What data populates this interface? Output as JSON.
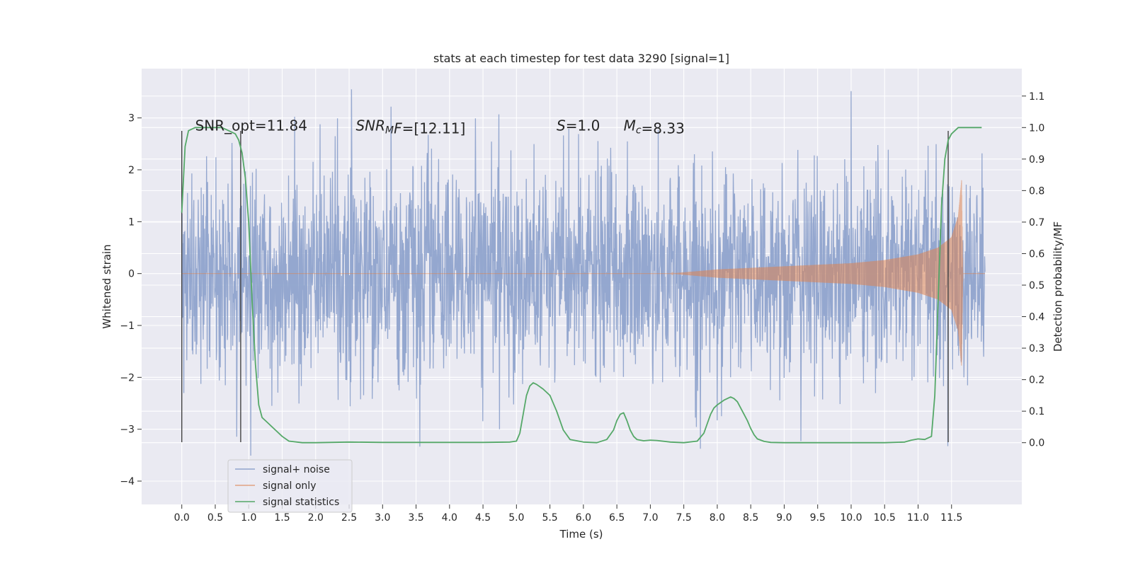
{
  "chart_data": {
    "type": "line",
    "title": "stats at each timestep for test data 3290 [signal=1]",
    "xlabel": "Time (s)",
    "ylabel": "Whitened strain",
    "ylabel_right": "Detection probability/MF",
    "xlim": [
      -0.6,
      12.55
    ],
    "ylim": [
      -4.45,
      3.95
    ],
    "ylim_right": [
      -0.196,
      1.187
    ],
    "x_ticks": [
      0.0,
      0.5,
      1.0,
      1.5,
      2.0,
      2.5,
      3.0,
      3.5,
      4.0,
      4.5,
      5.0,
      5.5,
      6.0,
      6.5,
      7.0,
      7.5,
      8.0,
      8.5,
      9.0,
      9.5,
      10.0,
      10.5,
      11.0,
      11.5
    ],
    "x_tick_labels": [
      "0.0",
      "0.5",
      "1.0",
      "1.5",
      "2.0",
      "2.5",
      "3.0",
      "3.5",
      "4.0",
      "4.5",
      "5.0",
      "5.5",
      "6.0",
      "6.5",
      "7.0",
      "7.5",
      "8.0",
      "8.5",
      "9.0",
      "9.5",
      "10.0",
      "10.5",
      "11.0",
      "11.5"
    ],
    "y_ticks": [
      -4,
      -3,
      -2,
      -1,
      0,
      1,
      2,
      3
    ],
    "y_tick_labels": [
      "−4",
      "−3",
      "−2",
      "−1",
      "0",
      "1",
      "2",
      "3"
    ],
    "y_right_ticks": [
      0.0,
      0.1,
      0.2,
      0.3,
      0.4,
      0.5,
      0.6,
      0.7,
      0.8,
      0.9,
      1.0,
      1.1
    ],
    "y_right_tick_labels": [
      "0.0",
      "0.1",
      "0.2",
      "0.3",
      "0.4",
      "0.5",
      "0.6",
      "0.7",
      "0.8",
      "0.9",
      "1.0",
      "1.1"
    ],
    "grid": true,
    "legend_placement": "lower-left",
    "annotations": [
      {
        "x": 0.2,
        "y": 2.85,
        "parts": [
          {
            "t": "SNR_opt=11.84"
          }
        ]
      },
      {
        "x": 2.6,
        "y": 2.85,
        "parts": [
          {
            "t": "SNR",
            "i": true
          },
          {
            "t": "M",
            "i": true,
            "sub": true
          },
          {
            "t": "F",
            "i": true
          },
          {
            "t": "=[12.11]"
          }
        ]
      },
      {
        "x": 5.6,
        "y": 2.85,
        "parts": [
          {
            "t": "S",
            "i": true
          },
          {
            "t": "=1.0"
          }
        ]
      },
      {
        "x": 6.6,
        "y": 2.85,
        "parts": [
          {
            "t": "M",
            "i": true
          },
          {
            "t": "c",
            "i": true,
            "sub": true
          },
          {
            "t": "=8.33"
          }
        ]
      }
    ],
    "vertical_lines": [
      {
        "x": 0.0,
        "y_range": [
          -3.25,
          2.75
        ]
      },
      {
        "x": 0.88,
        "y_range": [
          -3.25,
          2.75
        ]
      },
      {
        "x": 11.45,
        "y_range": [
          -3.25,
          2.75
        ]
      }
    ],
    "series": [
      {
        "name": "signal+ noise",
        "color": "#8fa3cc",
        "axis": "left",
        "description_of_envelope": "dense noise, typical amplitude ~1.5, peaks up to ~3.5",
        "t_range": [
          0.0,
          12.0
        ],
        "envelope_points": [
          {
            "t": 0.0,
            "max": 1.5,
            "min": -1.6
          },
          {
            "t": 0.3,
            "max": 3.6,
            "min": -2.4
          },
          {
            "t": 1.0,
            "max": 3.3,
            "min": -2.9
          },
          {
            "t": 1.6,
            "max": 2.7,
            "min": -3.7
          },
          {
            "t": 3.3,
            "max": 3.5,
            "min": -3.0
          },
          {
            "t": 5.3,
            "max": 3.4,
            "min": -3.6
          },
          {
            "t": 7.5,
            "max": 3.5,
            "min": -3.1
          },
          {
            "t": 9.5,
            "max": 3.3,
            "min": -3.6
          },
          {
            "t": 11.2,
            "max": 3.4,
            "min": -2.6
          },
          {
            "t": 12.0,
            "max": 3.1,
            "min": -2.3
          }
        ]
      },
      {
        "name": "signal only",
        "color": "#dd8452",
        "axis": "left",
        "chirp_start": 7.3,
        "chirp_end": 11.67,
        "amplitude_points": [
          {
            "t": 7.3,
            "a": 0.0
          },
          {
            "t": 8.0,
            "a": 0.08
          },
          {
            "t": 9.0,
            "a": 0.14
          },
          {
            "t": 10.0,
            "a": 0.2
          },
          {
            "t": 10.5,
            "a": 0.26
          },
          {
            "t": 11.0,
            "a": 0.37
          },
          {
            "t": 11.3,
            "a": 0.5
          },
          {
            "t": 11.5,
            "a": 0.7
          },
          {
            "t": 11.6,
            "a": 1.1
          },
          {
            "t": 11.65,
            "a": 1.8
          },
          {
            "t": 11.67,
            "a": 0.0
          }
        ]
      },
      {
        "name": "signal statistics",
        "color": "#55a868",
        "axis": "right",
        "x": [
          0.0,
          0.05,
          0.1,
          0.2,
          0.3,
          0.4,
          0.5,
          0.6,
          0.7,
          0.8,
          0.85,
          0.9,
          0.95,
          1.0,
          1.05,
          1.1,
          1.15,
          1.2,
          1.3,
          1.4,
          1.5,
          1.6,
          1.8,
          2.0,
          2.5,
          3.0,
          3.5,
          4.0,
          4.5,
          4.9,
          5.0,
          5.05,
          5.1,
          5.15,
          5.2,
          5.25,
          5.3,
          5.4,
          5.5,
          5.6,
          5.7,
          5.8,
          6.0,
          6.2,
          6.35,
          6.45,
          6.5,
          6.55,
          6.6,
          6.65,
          6.7,
          6.75,
          6.8,
          6.9,
          7.0,
          7.1,
          7.3,
          7.5,
          7.7,
          7.8,
          7.85,
          7.9,
          7.95,
          8.0,
          8.1,
          8.2,
          8.25,
          8.3,
          8.35,
          8.4,
          8.45,
          8.5,
          8.55,
          8.6,
          8.7,
          8.8,
          9.0,
          9.5,
          10.0,
          10.5,
          10.8,
          10.9,
          11.0,
          11.1,
          11.2,
          11.25,
          11.3,
          11.35,
          11.4,
          11.45,
          11.5,
          11.55,
          11.6,
          11.7,
          11.8,
          11.9,
          11.95
        ],
        "values": [
          0.73,
          0.94,
          0.99,
          1.0,
          1.0,
          1.0,
          1.0,
          1.0,
          0.99,
          0.98,
          0.96,
          0.92,
          0.84,
          0.7,
          0.45,
          0.25,
          0.12,
          0.08,
          0.06,
          0.04,
          0.02,
          0.005,
          0.0,
          0.0,
          0.002,
          0.001,
          0.001,
          0.001,
          0.001,
          0.002,
          0.005,
          0.03,
          0.09,
          0.15,
          0.18,
          0.19,
          0.185,
          0.17,
          0.15,
          0.1,
          0.04,
          0.01,
          0.002,
          0.0,
          0.01,
          0.04,
          0.07,
          0.09,
          0.095,
          0.07,
          0.04,
          0.02,
          0.01,
          0.006,
          0.008,
          0.007,
          0.002,
          0.0,
          0.005,
          0.03,
          0.06,
          0.09,
          0.11,
          0.12,
          0.135,
          0.145,
          0.14,
          0.13,
          0.11,
          0.09,
          0.07,
          0.045,
          0.025,
          0.012,
          0.004,
          0.001,
          0.0,
          0.0,
          0.0,
          0.0,
          0.002,
          0.008,
          0.012,
          0.01,
          0.02,
          0.15,
          0.45,
          0.75,
          0.9,
          0.96,
          0.98,
          0.99,
          1.0,
          1.0,
          1.0,
          1.0,
          1.0
        ]
      }
    ]
  }
}
